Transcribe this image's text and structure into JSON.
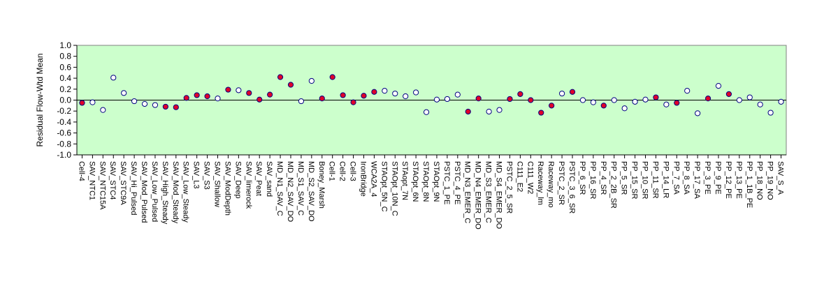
{
  "chart_data": {
    "type": "scatter",
    "title": "",
    "xlabel": "",
    "ylabel": "Residual Flow-Wtd Mean",
    "ylim": [
      -1.0,
      1.0
    ],
    "yticks": [
      "1.0",
      "0.8",
      "0.6",
      "0.4",
      "0.2",
      "0.0",
      "-0.2",
      "-0.4",
      "-0.6",
      "-0.8",
      "-1.0"
    ],
    "grid": false,
    "legend": "none",
    "colors": {
      "plot_background": "#ccffcc",
      "filled_marker": "#e0002a",
      "open_marker": "#ffffff",
      "marker_edge": "#000080",
      "zero_line": "#000000"
    },
    "categories": [
      "Cell-4",
      "SAV_NTC1",
      "SAV_NTC15A",
      "SAV_STC4",
      "SAV_STC9A",
      "SAV_Hi_Pulsed",
      "SAV_Mod_Pulsed",
      "SAV_Low_Pulsed",
      "SAV_High_Steady",
      "SAV_Mod_Steady",
      "SAV_Low_Steady",
      "SAV_L3",
      "SAV_S3",
      "SAV_Shallow",
      "SAV_ModDepth",
      "SAV_Deep",
      "SAV_limerock",
      "SAV_Peat",
      "SAV_sand",
      "MD_N1_SAV_C",
      "MD_N2_SAV_DO",
      "MD_S1_SAV_C",
      "MD_S2_SAV_DO",
      "Boney_Marsh",
      "Cell-1",
      "Cell-2",
      "Cell-3",
      "IronBridge",
      "WCA2A_4",
      "STAOpt_5N_C",
      "STAOpt_10N_C",
      "STAopt_7N",
      "STAOpt_6N",
      "STAOpt_8N",
      "STAOpt_9N",
      "PSTC_1_PE",
      "PSTC_4_PE",
      "MD_N3_EMER_C",
      "MD_N4_EMER_DO",
      "MD_S3_EMER_C",
      "MD_S4_EMER_DO",
      "PSTC_2_5_SR",
      "C111_E2",
      "C111_W2",
      "Raceway_lm",
      "Raceway_mo",
      "PSTC_2_SR",
      "PSTC_3_6_SR",
      "PP_6_SR",
      "PP_16_SR",
      "PP_4_SR",
      "PP_2_2B_SR",
      "PP_5_SR",
      "PP_15_SR",
      "PP_10_SR",
      "PP_11_SR",
      "PP_14_LR",
      "PP_7_SA",
      "PP_8_SA",
      "PP_17_SA",
      "PP_3_PE",
      "PP_9_PE",
      "PP_12_PE",
      "PP_13_PE",
      "PP_1_1B_PE",
      "PP_18_NO",
      "PP_19_NO",
      "SAV_S_A"
    ],
    "values": [
      -0.05,
      -0.04,
      -0.18,
      0.41,
      0.13,
      -0.02,
      -0.07,
      -0.09,
      -0.12,
      -0.13,
      0.04,
      0.09,
      0.07,
      0.03,
      0.19,
      0.18,
      0.13,
      0.01,
      0.1,
      0.42,
      0.28,
      -0.02,
      0.35,
      0.03,
      0.42,
      0.09,
      -0.04,
      0.08,
      0.15,
      0.17,
      0.12,
      0.07,
      0.14,
      -0.22,
      0.01,
      0.02,
      0.1,
      -0.21,
      0.03,
      -0.21,
      -0.18,
      0.02,
      0.11,
      0.0,
      -0.23,
      -0.1,
      0.12,
      0.15,
      0.0,
      -0.04,
      -0.1,
      0.0,
      -0.15,
      -0.03,
      0.01,
      0.05,
      -0.08,
      -0.05,
      0.17,
      -0.24,
      0.03,
      0.26,
      0.11,
      0.0,
      0.05,
      -0.08,
      -0.23,
      -0.03
    ],
    "filled": [
      true,
      false,
      false,
      false,
      false,
      false,
      false,
      false,
      true,
      true,
      true,
      true,
      true,
      false,
      true,
      false,
      true,
      true,
      true,
      true,
      true,
      false,
      false,
      true,
      true,
      true,
      true,
      true,
      true,
      false,
      false,
      false,
      false,
      false,
      false,
      false,
      false,
      true,
      true,
      false,
      false,
      true,
      true,
      true,
      true,
      true,
      false,
      true,
      false,
      false,
      true,
      false,
      false,
      false,
      false,
      true,
      false,
      true,
      false,
      false,
      true,
      false,
      true,
      false,
      false,
      false,
      false,
      false
    ]
  }
}
